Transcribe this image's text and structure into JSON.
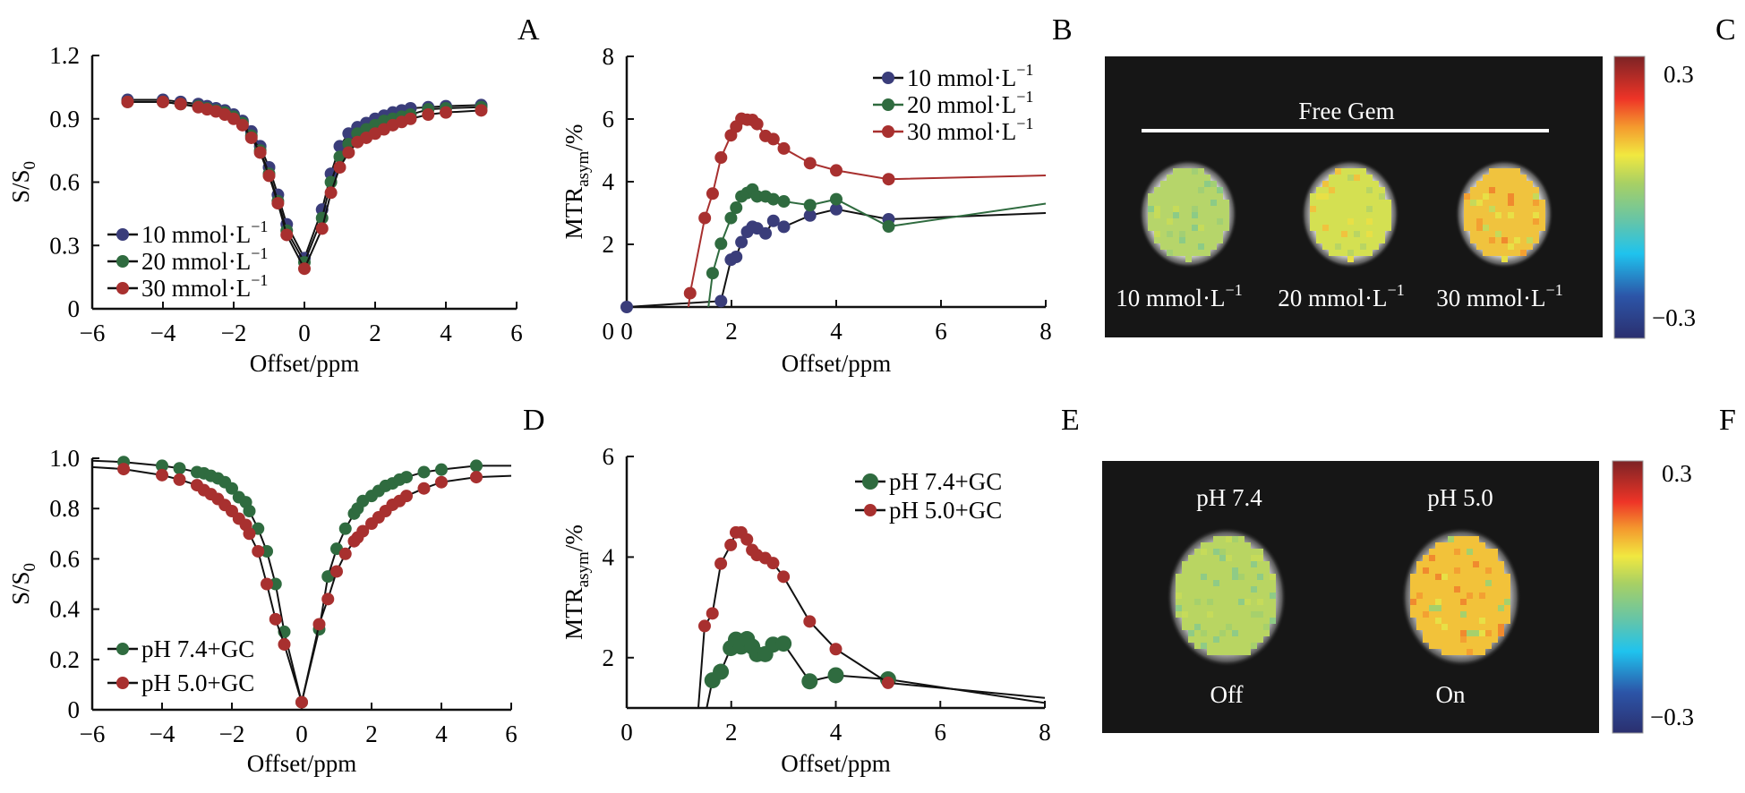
{
  "figure": {
    "panel_letters": [
      "A",
      "B",
      "C",
      "D",
      "E",
      "F"
    ]
  },
  "colors": {
    "c10": "#3a3d7a",
    "c20": "#2f6b3f",
    "c30": "#a8302f",
    "ph74": "#2f6b3f",
    "ph50": "#a8302f",
    "line_black": "#111111",
    "image_bg": "#161616"
  },
  "chart_data": [
    {
      "id": "A",
      "type": "line",
      "title": "",
      "xlabel": "Offset/ppm",
      "ylabel": "S/S",
      "ylabel_sub": "0",
      "xlim": [
        -6,
        6
      ],
      "ylim": [
        0,
        1.2
      ],
      "xticks": [
        -6,
        -4,
        -2,
        0,
        2,
        4,
        6
      ],
      "xtick_labels": [
        "−6",
        "−4",
        "−2",
        "0",
        "2",
        "4",
        "6"
      ],
      "yticks": [
        0,
        0.3,
        0.6,
        0.9,
        1.2
      ],
      "ytick_labels": [
        "0",
        "0.3",
        "0.6",
        "0.9",
        "1.2"
      ],
      "legend_position": "bottom-left",
      "series": [
        {
          "name": "10 mmol·L",
          "sup": "−1",
          "color_key": "c10",
          "line_color": "#111111",
          "x": [
            -5,
            -4,
            -3.5,
            -3,
            -2.75,
            -2.5,
            -2.25,
            -2,
            -1.75,
            -1.5,
            -1.25,
            -1,
            -0.75,
            -0.5,
            0,
            0.5,
            0.75,
            1,
            1.25,
            1.5,
            1.75,
            2,
            2.25,
            2.5,
            2.75,
            3,
            3.5,
            4,
            5
          ],
          "y": [
            0.99,
            0.99,
            0.98,
            0.97,
            0.96,
            0.95,
            0.94,
            0.92,
            0.89,
            0.84,
            0.77,
            0.67,
            0.54,
            0.4,
            0.24,
            0.47,
            0.64,
            0.77,
            0.83,
            0.86,
            0.88,
            0.9,
            0.915,
            0.93,
            0.94,
            0.95,
            0.955,
            0.96,
            0.965
          ]
        },
        {
          "name": "20 mmol·L",
          "sup": "−1",
          "color_key": "c20",
          "line_color": "#111111",
          "x": [
            -5,
            -4,
            -3.5,
            -3,
            -2.75,
            -2.5,
            -2.25,
            -2,
            -1.75,
            -1.5,
            -1.25,
            -1,
            -0.75,
            -0.5,
            0,
            0.5,
            0.75,
            1,
            1.25,
            1.5,
            1.75,
            2,
            2.25,
            2.5,
            2.75,
            3,
            3.5,
            4,
            5
          ],
          "y": [
            0.98,
            0.98,
            0.97,
            0.96,
            0.95,
            0.94,
            0.93,
            0.91,
            0.88,
            0.82,
            0.75,
            0.64,
            0.51,
            0.37,
            0.22,
            0.43,
            0.6,
            0.72,
            0.78,
            0.83,
            0.85,
            0.87,
            0.89,
            0.9,
            0.91,
            0.92,
            0.945,
            0.95,
            0.955
          ]
        },
        {
          "name": "30 mmol·L",
          "sup": "−1",
          "color_key": "c30",
          "line_color": "#111111",
          "x": [
            -5,
            -4,
            -3.5,
            -3,
            -2.75,
            -2.5,
            -2.25,
            -2,
            -1.75,
            -1.5,
            -1.25,
            -1,
            -0.75,
            -0.5,
            0,
            0.5,
            0.75,
            1,
            1.25,
            1.5,
            1.75,
            2,
            2.25,
            2.5,
            2.75,
            3,
            3.5,
            4,
            5
          ],
          "y": [
            0.98,
            0.98,
            0.97,
            0.955,
            0.945,
            0.935,
            0.92,
            0.9,
            0.87,
            0.81,
            0.74,
            0.63,
            0.5,
            0.35,
            0.19,
            0.38,
            0.55,
            0.67,
            0.74,
            0.79,
            0.81,
            0.83,
            0.85,
            0.87,
            0.885,
            0.9,
            0.92,
            0.93,
            0.94
          ]
        }
      ]
    },
    {
      "id": "B",
      "type": "line",
      "title": "",
      "xlabel": "Offset/ppm",
      "ylabel": "MTR",
      "ylabel_sub": "asym",
      "ylabel_suffix": "/%",
      "xlim": [
        0,
        8
      ],
      "ylim": [
        0,
        8
      ],
      "xticks": [
        0,
        2,
        4,
        6,
        8
      ],
      "xtick_labels": [
        "0",
        "2",
        "4",
        "6",
        "8"
      ],
      "yticks": [
        2,
        4,
        6,
        8
      ],
      "ytick_labels": [
        "2",
        "4",
        "6",
        "8"
      ],
      "legend_position": "top-right",
      "series": [
        {
          "name": "10 mmol·L",
          "sup": "−1",
          "color_key": "c10",
          "line_color": "#111111",
          "x": [
            0,
            1.8,
            1.99,
            2.09,
            2.19,
            2.3,
            2.4,
            2.49,
            2.65,
            2.8,
            3.0,
            3.5,
            4.0,
            5.0
          ],
          "y": [
            0,
            0.19,
            1.51,
            1.6,
            2.07,
            2.4,
            2.56,
            2.51,
            2.35,
            2.75,
            2.56,
            2.92,
            3.12,
            2.8
          ],
          "extend_to": [
            8,
            3.0
          ],
          "clip_below_axis": true
        },
        {
          "name": "20 mmol·L",
          "sup": "−1",
          "color_key": "c20",
          "line_color": "#2f6b3f",
          "x": [
            1.64,
            1.8,
            1.99,
            2.09,
            2.19,
            2.3,
            2.4,
            2.49,
            2.65,
            2.8,
            3.0,
            3.5,
            4.0,
            5.0
          ],
          "y": [
            1.08,
            2.02,
            2.84,
            3.17,
            3.53,
            3.64,
            3.75,
            3.53,
            3.53,
            3.44,
            3.37,
            3.25,
            3.44,
            2.57
          ],
          "start_at_axis_x": 1.56,
          "extend_to": [
            8,
            3.3
          ]
        },
        {
          "name": "30 mmol·L",
          "sup": "−1",
          "color_key": "c30",
          "line_color": "#a8302f",
          "x": [
            1.21,
            1.49,
            1.64,
            1.8,
            1.99,
            2.09,
            2.19,
            2.3,
            2.4,
            2.49,
            2.65,
            2.8,
            3.0,
            3.5,
            4.0,
            5.0
          ],
          "y": [
            0.44,
            2.84,
            3.62,
            4.77,
            5.48,
            5.76,
            6.01,
            5.98,
            5.97,
            5.84,
            5.46,
            5.36,
            5.06,
            4.59,
            4.36,
            4.08
          ],
          "start_at_axis_x": 1.18,
          "extend_to": [
            8,
            4.2
          ]
        }
      ]
    },
    {
      "id": "C",
      "type": "heatmap",
      "title": "Free Gem",
      "labels": [
        "10 mmol·L",
        "20 mmol·L",
        "30 mmol·L"
      ],
      "label_sup": "−1",
      "colorbar": {
        "max_label": "0.3",
        "min_label": "−0.3",
        "range": [
          -0.3,
          0.3
        ]
      },
      "spot_mean_colors": [
        "#b6d56a",
        "#d4e052",
        "#f0c33e"
      ]
    },
    {
      "id": "D",
      "type": "line",
      "title": "",
      "xlabel": "Offset/ppm",
      "ylabel": "S/S",
      "ylabel_sub": "0",
      "xlim": [
        -6,
        6
      ],
      "ylim": [
        0,
        1.0
      ],
      "xticks": [
        -6,
        -4,
        -2,
        0,
        2,
        4,
        6
      ],
      "xtick_labels": [
        "−6",
        "−4",
        "−2",
        "0",
        "2",
        "4",
        "6"
      ],
      "yticks": [
        0,
        0.2,
        0.4,
        0.6,
        0.8,
        1.0
      ],
      "ytick_labels": [
        "0",
        "0.2",
        "0.4",
        "0.6",
        "0.8",
        "1.0"
      ],
      "legend_position": "bottom-left",
      "series": [
        {
          "name": "pH 7.4+GC",
          "color_key": "ph74",
          "line_color": "#111111",
          "x": [
            -5.1,
            -4,
            -3.5,
            -3,
            -2.8,
            -2.6,
            -2.4,
            -2.2,
            -2.0,
            -1.8,
            -1.6,
            -1.5,
            -1.25,
            -1.0,
            -0.75,
            -0.5,
            0,
            0.5,
            0.75,
            1.0,
            1.25,
            1.5,
            1.6,
            1.75,
            2.0,
            2.2,
            2.4,
            2.6,
            2.8,
            3.0,
            3.5,
            4.0,
            5.0
          ],
          "y": [
            0.985,
            0.97,
            0.96,
            0.945,
            0.94,
            0.93,
            0.92,
            0.905,
            0.88,
            0.845,
            0.825,
            0.79,
            0.72,
            0.63,
            0.5,
            0.31,
            0.03,
            0.32,
            0.53,
            0.64,
            0.72,
            0.78,
            0.8,
            0.83,
            0.85,
            0.87,
            0.89,
            0.9,
            0.915,
            0.925,
            0.945,
            0.955,
            0.97
          ],
          "extend_left": 0.99,
          "extend_right": 0.97
        },
        {
          "name": "pH 5.0+GC",
          "color_key": "ph50",
          "line_color": "#111111",
          "x": [
            -5.1,
            -4,
            -3.5,
            -3,
            -2.8,
            -2.6,
            -2.4,
            -2.2,
            -2.0,
            -1.8,
            -1.6,
            -1.5,
            -1.25,
            -1.0,
            -0.75,
            -0.5,
            0,
            0.5,
            0.75,
            1.0,
            1.25,
            1.5,
            1.6,
            1.75,
            2.0,
            2.2,
            2.4,
            2.6,
            2.8,
            3.0,
            3.5,
            4.0,
            5.0
          ],
          "y": [
            0.957,
            0.933,
            0.915,
            0.893,
            0.873,
            0.857,
            0.838,
            0.814,
            0.79,
            0.76,
            0.735,
            0.7,
            0.63,
            0.5,
            0.36,
            0.26,
            0.03,
            0.34,
            0.44,
            0.55,
            0.62,
            0.67,
            0.685,
            0.71,
            0.74,
            0.765,
            0.79,
            0.815,
            0.83,
            0.85,
            0.88,
            0.905,
            0.925
          ],
          "extend_left": 0.965,
          "extend_right": 0.93
        }
      ]
    },
    {
      "id": "E",
      "type": "line",
      "title": "",
      "xlabel": "Offset/ppm",
      "ylabel": "MTR",
      "ylabel_sub": "asym",
      "ylabel_suffix": "/%",
      "xlim": [
        0,
        8
      ],
      "ylim": [
        1.0,
        6
      ],
      "xticks": [
        0,
        2,
        4,
        6,
        8
      ],
      "xtick_labels": [
        "0",
        "2",
        "4",
        "6",
        "8"
      ],
      "yticks": [
        2,
        4,
        6
      ],
      "ytick_labels": [
        "2",
        "4",
        "6"
      ],
      "legend_position": "top-right",
      "series": [
        {
          "name": "pH 7.4+GC",
          "color_key": "ph74",
          "line_color": "#111111",
          "big_markers": true,
          "x": [
            1.64,
            1.8,
            1.99,
            2.09,
            2.19,
            2.3,
            2.4,
            2.49,
            2.65,
            2.8,
            3.0,
            3.5,
            4.0,
            5.0
          ],
          "y": [
            1.55,
            1.72,
            2.19,
            2.36,
            2.22,
            2.37,
            2.22,
            2.07,
            2.07,
            2.26,
            2.28,
            1.53,
            1.65,
            1.57
          ],
          "start_at_axis_x": 1.53,
          "extend_to": [
            8,
            1.1
          ]
        },
        {
          "name": "pH 5.0+GC",
          "color_key": "ph50",
          "line_color": "#111111",
          "x": [
            1.49,
            1.64,
            1.8,
            1.99,
            2.09,
            2.19,
            2.3,
            2.4,
            2.49,
            2.65,
            2.8,
            3.0,
            3.5,
            4.0,
            5.0
          ],
          "y": [
            2.63,
            2.88,
            3.87,
            4.24,
            4.49,
            4.49,
            4.35,
            4.14,
            4.04,
            3.98,
            3.88,
            3.61,
            2.72,
            2.17,
            1.5
          ],
          "start_at_axis_x": 1.37,
          "extend_to": [
            8,
            1.2
          ]
        }
      ]
    },
    {
      "id": "F",
      "type": "heatmap",
      "title": "",
      "top_labels": [
        "pH 7.4",
        "pH 5.0"
      ],
      "bottom_labels": [
        "Off",
        "On"
      ],
      "colorbar": {
        "max_label": "0.3",
        "min_label": "−0.3",
        "range": [
          -0.3,
          0.3
        ]
      },
      "spot_mean_colors": [
        "#b9d562",
        "#f2c23a"
      ]
    }
  ]
}
